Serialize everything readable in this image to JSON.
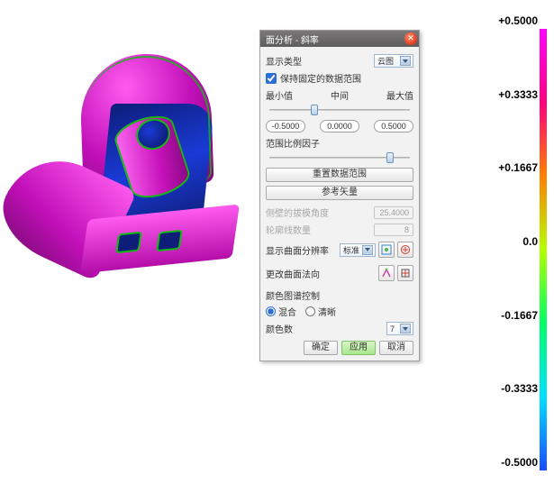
{
  "dialog": {
    "title": "面分析 - 斜率",
    "display_type_label": "显示类型",
    "display_type_value": "云图",
    "keep_fixed_range_label": "保持固定的数据范围",
    "keep_fixed_checked": true,
    "min_label": "最小值",
    "mid_label": "中间",
    "max_label": "最大值",
    "min_value": "-0.5000",
    "mid_value": "0.0000",
    "max_value": "0.5000",
    "range_factor_label": "范围比例因子",
    "reset_range_label": "重置数据范围",
    "ref_vector_label": "参考矢量",
    "draft_angle_label": "侧壁的拔模角度",
    "draft_angle_value": "25.4000",
    "contour_count_label": "轮廓线数量",
    "contour_count_value": "8",
    "display_resolution_label": "显示曲面分辨率",
    "display_resolution_value": "标准",
    "change_normal_label": "更改曲面法向",
    "color_control_label": "颜色图谱控制",
    "radio_blend": "混合",
    "radio_sharp": "清晰",
    "radio_selected": "blend",
    "color_count_label": "颜色数",
    "color_count_value": "7",
    "ok": "确定",
    "apply": "应用",
    "cancel": "取消",
    "slider1_pos_pct": 33,
    "slider2_pos_pct": 84
  },
  "legend": {
    "labels": [
      "+0.5000",
      "+0.3333",
      "+0.1667",
      "0.0",
      "-0.1667",
      "-0.3333",
      "-0.5000"
    ],
    "colors": [
      "#ff00ff",
      "#ff007f",
      "#ff8000",
      "#b3ff00",
      "#00ff66",
      "#00e0ff",
      "#1a4cff"
    ]
  },
  "model": {
    "primary_color": "#e020d9",
    "shadow_color": "#1030a0",
    "edge_color": "#0fbc0f"
  }
}
